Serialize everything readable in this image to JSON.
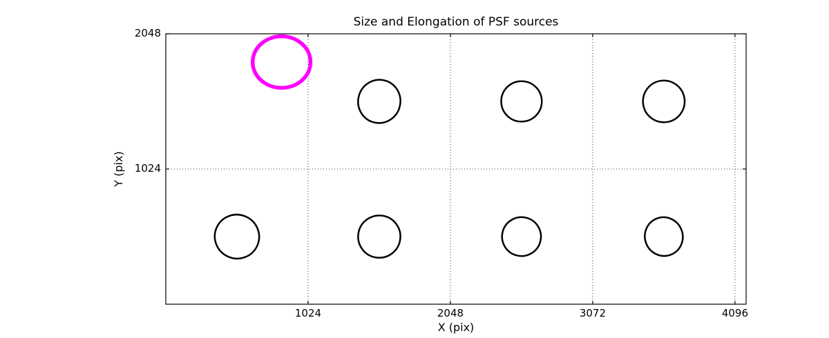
{
  "figure": {
    "background_color": "#ffffff",
    "frame_color": "#000000"
  },
  "chart_data": {
    "type": "scatter",
    "title": "Size and Elongation of PSF sources",
    "xlabel": "X (pix)",
    "ylabel": "Y (pix)",
    "xlim": [
      0,
      4176
    ],
    "ylim": [
      0,
      2048
    ],
    "xticks": [
      1024,
      2048,
      3072,
      4096
    ],
    "yticks": [
      1024,
      2048
    ],
    "grid": {
      "on": true,
      "style": "dotted",
      "color": "#000000"
    },
    "legend": {
      "on": false
    },
    "series_note": "PSF sources drawn as ellipses at grid positions; one highlighted source in magenta",
    "highlight_color": "#ff00ff",
    "default_color": "#000000",
    "ellipses": [
      {
        "x": 833,
        "y": 1834,
        "a": 208,
        "b": 195,
        "angle": 0,
        "color": "#ff00ff",
        "linewidth": 5.5,
        "role": "highlighted-source"
      },
      {
        "x": 1536,
        "y": 1536,
        "a": 152,
        "b": 164,
        "angle": -15,
        "color": "#000000",
        "linewidth": 2.5,
        "role": "psf-source"
      },
      {
        "x": 2560,
        "y": 1536,
        "a": 146,
        "b": 153,
        "angle": 0,
        "color": "#000000",
        "linewidth": 2.5,
        "role": "psf-source"
      },
      {
        "x": 3584,
        "y": 1536,
        "a": 150,
        "b": 158,
        "angle": 8,
        "color": "#000000",
        "linewidth": 2.5,
        "role": "psf-source"
      },
      {
        "x": 512,
        "y": 512,
        "a": 160,
        "b": 166,
        "angle": -25,
        "color": "#000000",
        "linewidth": 2.5,
        "role": "psf-source"
      },
      {
        "x": 1536,
        "y": 512,
        "a": 152,
        "b": 160,
        "angle": -8,
        "color": "#000000",
        "linewidth": 2.5,
        "role": "psf-source"
      },
      {
        "x": 2560,
        "y": 512,
        "a": 140,
        "b": 147,
        "angle": 30,
        "color": "#000000",
        "linewidth": 2.5,
        "role": "psf-source"
      },
      {
        "x": 3584,
        "y": 512,
        "a": 136,
        "b": 147,
        "angle": 22,
        "color": "#000000",
        "linewidth": 2.5,
        "role": "psf-source"
      }
    ]
  }
}
